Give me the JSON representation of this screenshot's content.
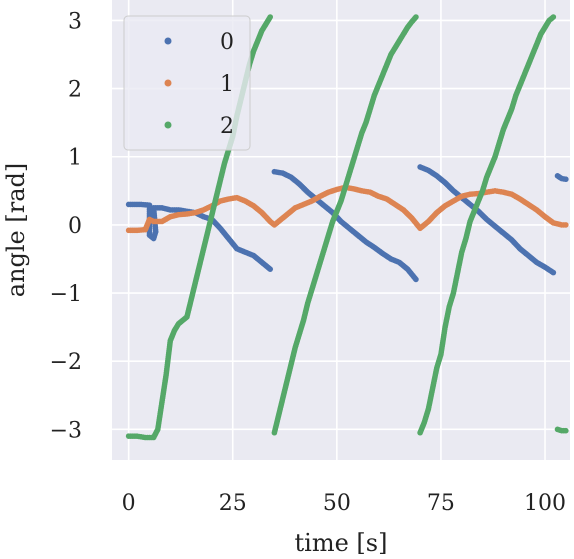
{
  "chart_data": {
    "type": "scatter",
    "title": "",
    "xlabel": "time [s]",
    "ylabel": "angle [rad]",
    "xlim": [
      -4,
      106
    ],
    "ylim": [
      -3.45,
      3.3
    ],
    "xticks": [
      0,
      25,
      50,
      75,
      100
    ],
    "xtick_labels": [
      "0",
      "25",
      "50",
      "75",
      "100"
    ],
    "yticks": [
      -3,
      -2,
      -1,
      0,
      1,
      2,
      3
    ],
    "ytick_labels": [
      "−3",
      "−2",
      "−1",
      "0",
      "1",
      "2",
      "3"
    ],
    "grid": true,
    "background": "#eaeaf2",
    "legend": {
      "position": "top-left"
    },
    "series": [
      {
        "name": "0",
        "color": "#4c72b0",
        "points": [
          [
            0,
            0.3
          ],
          [
            3,
            0.3
          ],
          [
            5,
            0.29
          ],
          [
            5,
            -0.15
          ],
          [
            6,
            -0.2
          ],
          [
            6.5,
            -0.1
          ],
          [
            6,
            0.25
          ],
          [
            8,
            0.25
          ],
          [
            10,
            0.22
          ],
          [
            12,
            0.22
          ],
          [
            14,
            0.2
          ],
          [
            16,
            0.18
          ],
          [
            18,
            0.12
          ],
          [
            20,
            0.08
          ],
          [
            22,
            -0.05
          ],
          [
            24,
            -0.2
          ],
          [
            26,
            -0.35
          ],
          [
            28,
            -0.4
          ],
          [
            30,
            -0.45
          ],
          [
            32,
            -0.55
          ],
          [
            34,
            -0.65
          ],
          [
            35,
            0.78
          ],
          [
            37,
            0.76
          ],
          [
            39,
            0.7
          ],
          [
            41,
            0.6
          ],
          [
            43,
            0.48
          ],
          [
            45,
            0.38
          ],
          [
            47,
            0.28
          ],
          [
            49,
            0.18
          ],
          [
            51,
            0.05
          ],
          [
            53,
            -0.05
          ],
          [
            55,
            -0.15
          ],
          [
            57,
            -0.25
          ],
          [
            59,
            -0.33
          ],
          [
            61,
            -0.42
          ],
          [
            63,
            -0.5
          ],
          [
            65,
            -0.55
          ],
          [
            67,
            -0.65
          ],
          [
            69,
            -0.8
          ],
          [
            70,
            0.85
          ],
          [
            72,
            0.8
          ],
          [
            74,
            0.72
          ],
          [
            76,
            0.62
          ],
          [
            78,
            0.5
          ],
          [
            80,
            0.4
          ],
          [
            82,
            0.3
          ],
          [
            84,
            0.2
          ],
          [
            86,
            0.08
          ],
          [
            88,
            -0.02
          ],
          [
            90,
            -0.12
          ],
          [
            92,
            -0.22
          ],
          [
            94,
            -0.35
          ],
          [
            96,
            -0.45
          ],
          [
            98,
            -0.55
          ],
          [
            100,
            -0.62
          ],
          [
            102,
            -0.7
          ],
          [
            103,
            0.72
          ],
          [
            104,
            0.68
          ],
          [
            105,
            0.67
          ]
        ]
      },
      {
        "name": "1",
        "color": "#dd8452",
        "points": [
          [
            0,
            -0.08
          ],
          [
            2,
            -0.08
          ],
          [
            4,
            -0.07
          ],
          [
            5,
            0.08
          ],
          [
            6,
            0.05
          ],
          [
            8,
            0.05
          ],
          [
            10,
            0.12
          ],
          [
            12,
            0.15
          ],
          [
            14,
            0.16
          ],
          [
            16,
            0.18
          ],
          [
            18,
            0.22
          ],
          [
            20,
            0.28
          ],
          [
            22,
            0.35
          ],
          [
            24,
            0.38
          ],
          [
            26,
            0.4
          ],
          [
            28,
            0.35
          ],
          [
            30,
            0.28
          ],
          [
            32,
            0.18
          ],
          [
            34,
            0.05
          ],
          [
            35,
            0.0
          ],
          [
            36,
            0.05
          ],
          [
            38,
            0.15
          ],
          [
            40,
            0.25
          ],
          [
            42,
            0.3
          ],
          [
            44,
            0.35
          ],
          [
            46,
            0.42
          ],
          [
            48,
            0.48
          ],
          [
            50,
            0.52
          ],
          [
            52,
            0.55
          ],
          [
            54,
            0.53
          ],
          [
            56,
            0.5
          ],
          [
            58,
            0.48
          ],
          [
            60,
            0.42
          ],
          [
            62,
            0.38
          ],
          [
            64,
            0.3
          ],
          [
            66,
            0.22
          ],
          [
            68,
            0.1
          ],
          [
            70,
            -0.05
          ],
          [
            72,
            0.05
          ],
          [
            74,
            0.18
          ],
          [
            76,
            0.28
          ],
          [
            78,
            0.35
          ],
          [
            80,
            0.42
          ],
          [
            82,
            0.45
          ],
          [
            84,
            0.46
          ],
          [
            86,
            0.48
          ],
          [
            88,
            0.5
          ],
          [
            90,
            0.48
          ],
          [
            92,
            0.45
          ],
          [
            94,
            0.38
          ],
          [
            96,
            0.3
          ],
          [
            98,
            0.22
          ],
          [
            100,
            0.12
          ],
          [
            102,
            0.03
          ],
          [
            104,
            0.0
          ],
          [
            105,
            0.0
          ]
        ]
      },
      {
        "name": "2",
        "color": "#55a868",
        "points": [
          [
            0,
            -3.1
          ],
          [
            2,
            -3.1
          ],
          [
            4,
            -3.12
          ],
          [
            6,
            -3.12
          ],
          [
            7,
            -3.0
          ],
          [
            8,
            -2.6
          ],
          [
            9,
            -2.2
          ],
          [
            10,
            -1.7
          ],
          [
            11,
            -1.55
          ],
          [
            12,
            -1.45
          ],
          [
            14,
            -1.35
          ],
          [
            15,
            -1.1
          ],
          [
            16,
            -0.85
          ],
          [
            17,
            -0.6
          ],
          [
            18,
            -0.35
          ],
          [
            19,
            -0.1
          ],
          [
            20,
            0.15
          ],
          [
            21,
            0.4
          ],
          [
            22,
            0.65
          ],
          [
            23,
            0.9
          ],
          [
            24,
            1.1
          ],
          [
            25,
            1.3
          ],
          [
            26,
            1.6
          ],
          [
            27,
            1.85
          ],
          [
            28,
            2.1
          ],
          [
            29,
            2.35
          ],
          [
            30,
            2.55
          ],
          [
            31,
            2.7
          ],
          [
            32,
            2.85
          ],
          [
            33,
            2.95
          ],
          [
            34,
            3.05
          ],
          [
            35,
            -3.05
          ],
          [
            36,
            -2.8
          ],
          [
            37,
            -2.55
          ],
          [
            38,
            -2.3
          ],
          [
            39,
            -2.05
          ],
          [
            40,
            -1.8
          ],
          [
            41,
            -1.6
          ],
          [
            42,
            -1.4
          ],
          [
            43,
            -1.15
          ],
          [
            44,
            -0.95
          ],
          [
            45,
            -0.75
          ],
          [
            46,
            -0.55
          ],
          [
            47,
            -0.35
          ],
          [
            48,
            -0.15
          ],
          [
            49,
            0.05
          ],
          [
            50,
            0.2
          ],
          [
            51,
            0.35
          ],
          [
            52,
            0.55
          ],
          [
            53,
            0.75
          ],
          [
            54,
            0.95
          ],
          [
            55,
            1.15
          ],
          [
            56,
            1.35
          ],
          [
            57,
            1.5
          ],
          [
            58,
            1.7
          ],
          [
            59,
            1.9
          ],
          [
            60,
            2.05
          ],
          [
            61,
            2.2
          ],
          [
            62,
            2.35
          ],
          [
            63,
            2.5
          ],
          [
            64,
            2.6
          ],
          [
            65,
            2.7
          ],
          [
            66,
            2.8
          ],
          [
            67,
            2.9
          ],
          [
            68,
            2.98
          ],
          [
            69,
            3.05
          ],
          [
            70,
            -3.05
          ],
          [
            71,
            -2.9
          ],
          [
            72,
            -2.7
          ],
          [
            73,
            -2.4
          ],
          [
            74,
            -2.1
          ],
          [
            75,
            -1.9
          ],
          [
            76,
            -1.5
          ],
          [
            77,
            -1.2
          ],
          [
            78,
            -1.0
          ],
          [
            79,
            -0.7
          ],
          [
            80,
            -0.4
          ],
          [
            81,
            -0.2
          ],
          [
            82,
            0.05
          ],
          [
            83,
            0.2
          ],
          [
            84,
            0.35
          ],
          [
            85,
            0.5
          ],
          [
            86,
            0.7
          ],
          [
            87,
            0.85
          ],
          [
            88,
            1.0
          ],
          [
            89,
            1.2
          ],
          [
            90,
            1.4
          ],
          [
            91,
            1.55
          ],
          [
            92,
            1.7
          ],
          [
            93,
            1.9
          ],
          [
            94,
            2.05
          ],
          [
            95,
            2.2
          ],
          [
            96,
            2.35
          ],
          [
            97,
            2.5
          ],
          [
            98,
            2.65
          ],
          [
            99,
            2.8
          ],
          [
            100,
            2.9
          ],
          [
            101,
            3.0
          ],
          [
            102,
            3.05
          ],
          [
            103,
            -3.0
          ],
          [
            104,
            -3.02
          ],
          [
            105,
            -3.02
          ]
        ]
      }
    ]
  }
}
